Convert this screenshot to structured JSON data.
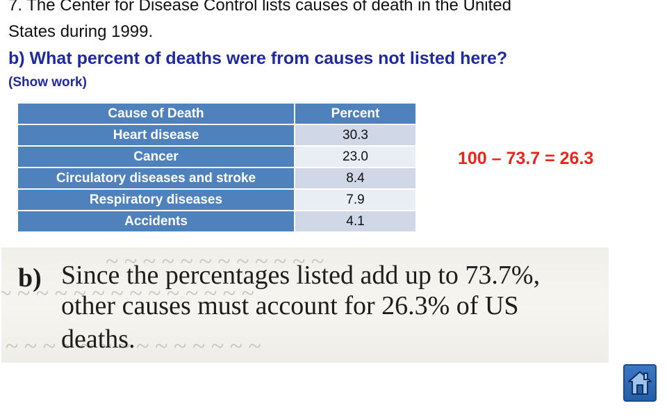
{
  "question": {
    "line1": "7. The Center for Disease Control lists causes of death in the United",
    "line2": "States during 1999.",
    "part_b": "b) What percent of deaths were from causes not listed here?",
    "show_work": "(Show work)"
  },
  "table": {
    "headers": [
      "Cause of Death",
      "Percent"
    ],
    "rows": [
      {
        "cause": "Heart disease",
        "percent": "30.3"
      },
      {
        "cause": "Cancer",
        "percent": "23.0"
      },
      {
        "cause": "Circulatory diseases and stroke",
        "percent": "8.4"
      },
      {
        "cause": "Respiratory diseases",
        "percent": "7.9"
      },
      {
        "cause": "Accidents",
        "percent": "4.1"
      }
    ]
  },
  "answer": "100 – 73.7 = 26.3",
  "scan": {
    "label": "b)",
    "lines": [
      "Since the percentages listed add up to 73.7%,",
      "other causes must account for 26.3% of US",
      "deaths."
    ]
  },
  "colors": {
    "header_blue": "#4f81bd",
    "row_light": "#d0d8e8",
    "row_lighter": "#e9edf4",
    "question_blue": "#1f2a9c",
    "answer_red": "#e8261c"
  },
  "icons": {
    "home": "home-icon"
  }
}
